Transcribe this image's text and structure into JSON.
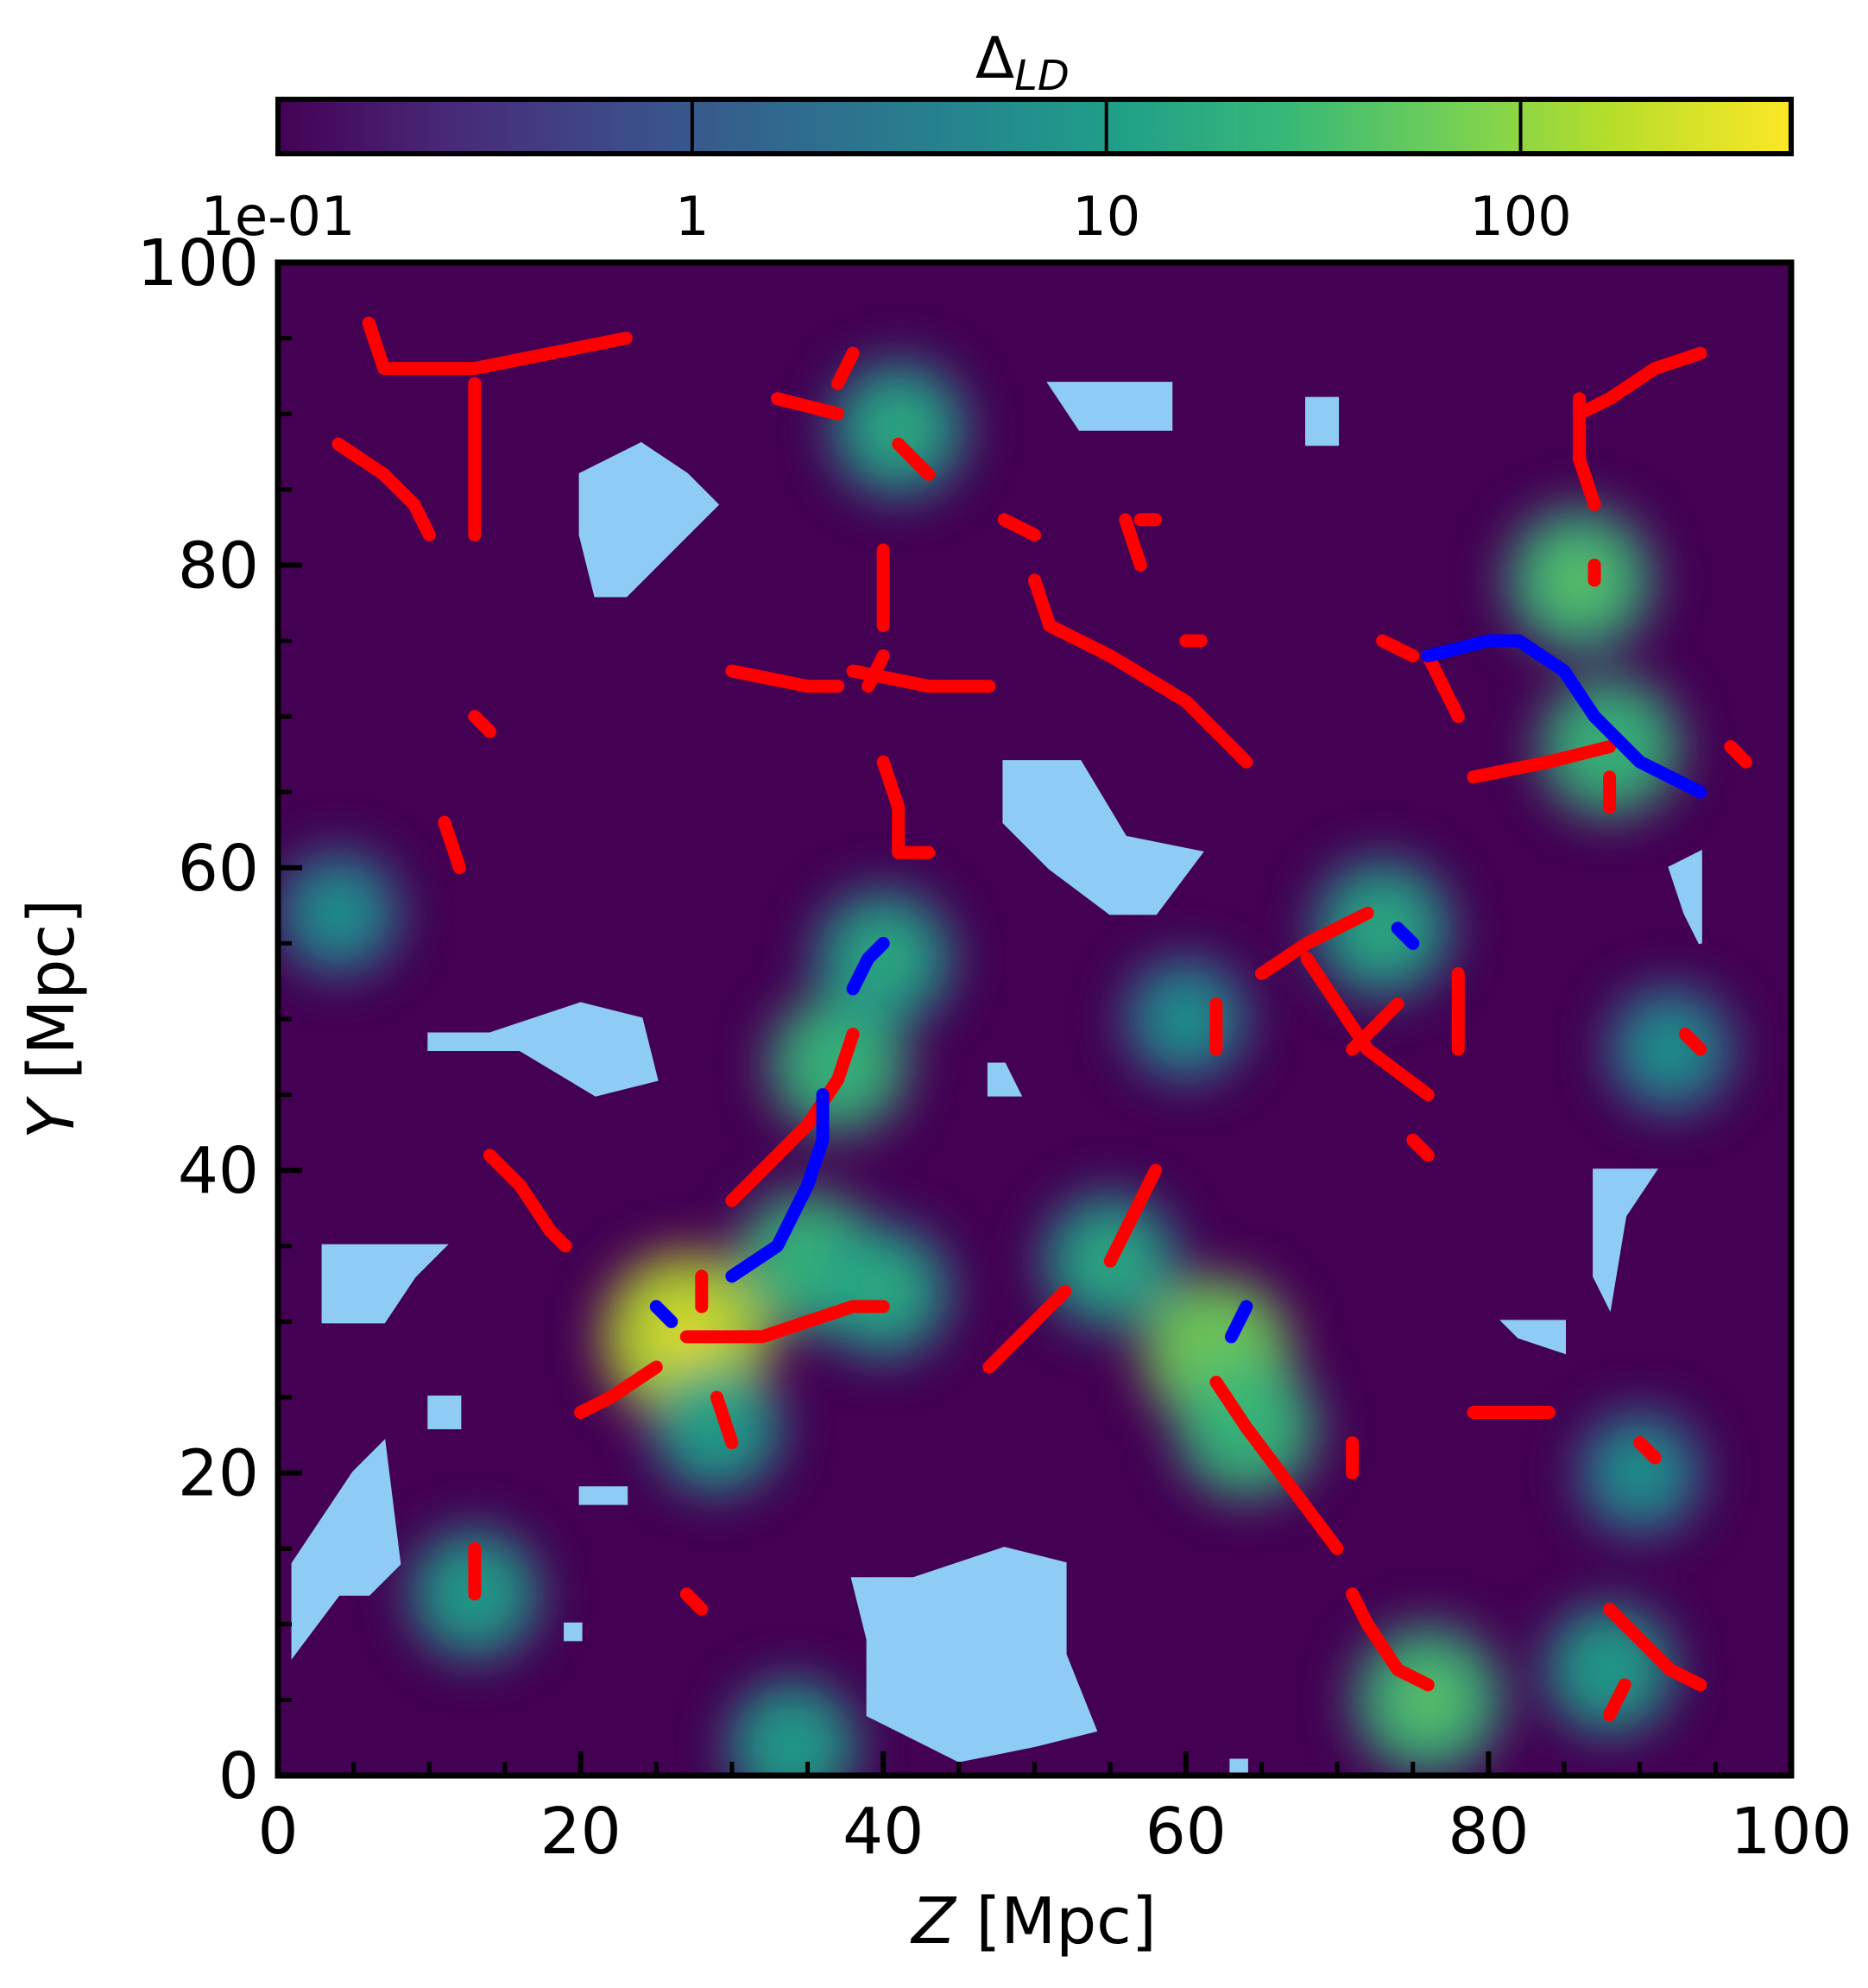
{
  "chart_data": {
    "type": "heatmap",
    "title": "",
    "xlabel": {
      "italic": "Z",
      "rest": " [Mpc]"
    },
    "ylabel": {
      "italic": "Y",
      "rest": " [Mpc]"
    },
    "xlim": [
      0,
      100
    ],
    "ylim": [
      0,
      100
    ],
    "xticks": [
      0,
      20,
      40,
      60,
      80,
      100
    ],
    "yticks": [
      0,
      20,
      40,
      60,
      80,
      100
    ],
    "grid": false,
    "colorbar": {
      "label": "Δ",
      "label_subscript": "LD",
      "location": "top",
      "scale": "log",
      "colormap": "viridis",
      "range": [
        0.1,
        450
      ],
      "ticks": [
        0.1,
        1,
        10,
        100
      ],
      "tick_labels": [
        "1e-01",
        "1",
        "10",
        "100"
      ]
    },
    "colors": {
      "background_density": "#440154",
      "void_mask": "#8ecbf5",
      "series_red": "#ff0000",
      "series_blue": "#0000ff"
    },
    "density_peaks": [
      {
        "x": 27,
        "y": 29,
        "value": 450
      },
      {
        "x": 35,
        "y": 34,
        "value": 40
      },
      {
        "x": 37,
        "y": 47,
        "value": 35
      },
      {
        "x": 40,
        "y": 54,
        "value": 30
      },
      {
        "x": 62,
        "y": 28,
        "value": 90
      },
      {
        "x": 64,
        "y": 23,
        "value": 40
      },
      {
        "x": 76,
        "y": 5,
        "value": 80
      },
      {
        "x": 86,
        "y": 79,
        "value": 60
      },
      {
        "x": 88,
        "y": 68,
        "value": 40
      },
      {
        "x": 73,
        "y": 56,
        "value": 30
      },
      {
        "x": 41,
        "y": 89,
        "value": 25
      },
      {
        "x": 55,
        "y": 34,
        "value": 25
      },
      {
        "x": 40,
        "y": 32,
        "value": 20
      },
      {
        "x": 13,
        "y": 12,
        "value": 15
      },
      {
        "x": 29,
        "y": 23,
        "value": 15
      },
      {
        "x": 34,
        "y": 2,
        "value": 15
      },
      {
        "x": 92,
        "y": 48,
        "value": 12
      },
      {
        "x": 90,
        "y": 20,
        "value": 10
      },
      {
        "x": 60,
        "y": 50,
        "value": 10
      },
      {
        "x": 4,
        "y": 57,
        "value": 10
      },
      {
        "x": 88,
        "y": 7,
        "value": 15
      }
    ],
    "voids": [
      {
        "points": [
          [
            20,
            86
          ],
          [
            24,
            88
          ],
          [
            27,
            86
          ],
          [
            29,
            84
          ],
          [
            27,
            82
          ],
          [
            23,
            78
          ],
          [
            21,
            78
          ],
          [
            20,
            82
          ]
        ]
      },
      {
        "points": [
          [
            51,
            92
          ],
          [
            59,
            92
          ],
          [
            59,
            89
          ],
          [
            53,
            89
          ]
        ]
      },
      {
        "points": [
          [
            48,
            67
          ],
          [
            53,
            67
          ],
          [
            56,
            62
          ],
          [
            61,
            61
          ],
          [
            58,
            57
          ],
          [
            55,
            57
          ],
          [
            51,
            60
          ],
          [
            48,
            63
          ]
        ]
      },
      {
        "points": [
          [
            10,
            49
          ],
          [
            14,
            49
          ],
          [
            20,
            51
          ],
          [
            24,
            50
          ],
          [
            25,
            46
          ],
          [
            21,
            45
          ],
          [
            16,
            48
          ],
          [
            10,
            48
          ]
        ]
      },
      {
        "points": [
          [
            3,
            35
          ],
          [
            11,
            35
          ],
          [
            9,
            33
          ],
          [
            7,
            30
          ],
          [
            3,
            30
          ]
        ]
      },
      {
        "points": [
          [
            38,
            13
          ],
          [
            42,
            13
          ],
          [
            48,
            15
          ],
          [
            52,
            14
          ],
          [
            52,
            8
          ],
          [
            54,
            3
          ],
          [
            50,
            2
          ],
          [
            45,
            1
          ],
          [
            39,
            4
          ],
          [
            39,
            9
          ]
        ]
      },
      {
        "points": [
          [
            5,
            20
          ],
          [
            7,
            22
          ],
          [
            8,
            14
          ],
          [
            6,
            12
          ],
          [
            4,
            12
          ],
          [
            1,
            8
          ],
          [
            1,
            14
          ]
        ]
      },
      {
        "points": [
          [
            87,
            40
          ],
          [
            91,
            40
          ],
          [
            89,
            37
          ],
          [
            88,
            31
          ],
          [
            87,
            33
          ]
        ]
      },
      {
        "points": [
          [
            81,
            30
          ],
          [
            85,
            30
          ],
          [
            85,
            28
          ],
          [
            82,
            29
          ]
        ]
      },
      {
        "points": [
          [
            92,
            60
          ],
          [
            94,
            61
          ],
          [
            94,
            55
          ],
          [
            93,
            57
          ]
        ]
      },
      {
        "points": [
          [
            68,
            91
          ],
          [
            70,
            91
          ],
          [
            70,
            88
          ],
          [
            68,
            88
          ]
        ]
      },
      {
        "points": [
          [
            10,
            25
          ],
          [
            12,
            25
          ],
          [
            12,
            23
          ],
          [
            10,
            23
          ]
        ]
      },
      {
        "points": [
          [
            47,
            47
          ],
          [
            48,
            47
          ],
          [
            49,
            45
          ],
          [
            47,
            45
          ]
        ]
      },
      {
        "points": [
          [
            63,
            1
          ],
          [
            64,
            1
          ],
          [
            64,
            0
          ],
          [
            63,
            0
          ]
        ]
      },
      {
        "points": [
          [
            20,
            19
          ],
          [
            23,
            19
          ],
          [
            23,
            18
          ],
          [
            20,
            18
          ]
        ]
      },
      {
        "points": [
          [
            19,
            10
          ],
          [
            20,
            10
          ],
          [
            20,
            9
          ],
          [
            19,
            9
          ]
        ]
      }
    ],
    "series": [
      {
        "color": "red",
        "segments": [
          [
            [
              6,
              96
            ],
            [
              7,
              93
            ],
            [
              13,
              93
            ],
            [
              18,
              94
            ],
            [
              23,
              95
            ]
          ],
          [
            [
              13,
              92
            ],
            [
              13,
              87
            ],
            [
              13,
              82
            ]
          ],
          [
            [
              4,
              88
            ],
            [
              7,
              86
            ],
            [
              9,
              84
            ],
            [
              10,
              82
            ]
          ],
          [
            [
              33,
              91
            ],
            [
              37,
              90
            ]
          ],
          [
            [
              37,
              92
            ],
            [
              38,
              94
            ]
          ],
          [
            [
              41,
              88
            ],
            [
              43,
              86
            ]
          ],
          [
            [
              40,
              81
            ],
            [
              40,
              76
            ]
          ],
          [
            [
              48,
              83
            ],
            [
              50,
              82
            ]
          ],
          [
            [
              56,
              83
            ],
            [
              57,
              80
            ]
          ],
          [
            [
              57,
              83
            ],
            [
              58,
              83
            ]
          ],
          [
            [
              50,
              79
            ],
            [
              51,
              76
            ],
            [
              55,
              74
            ],
            [
              60,
              71
            ],
            [
              64,
              67
            ]
          ],
          [
            [
              60,
              75
            ],
            [
              61,
              75
            ]
          ],
          [
            [
              30,
              73
            ],
            [
              35,
              72
            ],
            [
              37,
              72
            ]
          ],
          [
            [
              38,
              73
            ],
            [
              43,
              72
            ],
            [
              47,
              72
            ]
          ],
          [
            [
              40,
              74
            ],
            [
              39,
              72
            ]
          ],
          [
            [
              40,
              67
            ],
            [
              41,
              64
            ],
            [
              41,
              61
            ],
            [
              43,
              61
            ]
          ],
          [
            [
              13,
              70
            ],
            [
              14,
              69
            ]
          ],
          [
            [
              11,
              63
            ],
            [
              12,
              60
            ]
          ],
          [
            [
              38,
              49
            ],
            [
              37,
              46
            ],
            [
              35,
              43
            ],
            [
              30,
              38
            ]
          ],
          [
            [
              28,
              33
            ],
            [
              28,
              31
            ]
          ],
          [
            [
              14,
              41
            ],
            [
              16,
              39
            ],
            [
              18,
              36
            ]
          ],
          [
            [
              19,
              35
            ],
            [
              18,
              36
            ]
          ],
          [
            [
              27,
              29
            ],
            [
              30,
              29
            ],
            [
              32,
              29
            ],
            [
              35,
              30
            ],
            [
              38,
              31
            ],
            [
              40,
              31
            ]
          ],
          [
            [
              20,
              24
            ],
            [
              22,
              25
            ],
            [
              25,
              27
            ]
          ],
          [
            [
              29,
              25
            ],
            [
              30,
              22
            ]
          ],
          [
            [
              13,
              15
            ],
            [
              13,
              12
            ]
          ],
          [
            [
              27,
              12
            ],
            [
              28,
              11
            ]
          ],
          [
            [
              47,
              27
            ],
            [
              50,
              30
            ],
            [
              52,
              32
            ]
          ],
          [
            [
              55,
              34
            ],
            [
              57,
              38
            ],
            [
              58,
              40
            ]
          ],
          [
            [
              62,
              26
            ],
            [
              64,
              23
            ],
            [
              67,
              19
            ],
            [
              70,
              15
            ]
          ],
          [
            [
              71,
              12
            ],
            [
              72,
              10
            ],
            [
              74,
              7
            ],
            [
              76,
              6
            ]
          ],
          [
            [
              71,
              22
            ],
            [
              71,
              20
            ]
          ],
          [
            [
              65,
              53
            ],
            [
              68,
              55
            ],
            [
              72,
              57
            ]
          ],
          [
            [
              68,
              54
            ],
            [
              70,
              51
            ],
            [
              72,
              48
            ],
            [
              76,
              45
            ]
          ],
          [
            [
              71,
              48
            ],
            [
              74,
              51
            ]
          ],
          [
            [
              78,
              53
            ],
            [
              78,
              48
            ]
          ],
          [
            [
              62,
              51
            ],
            [
              62,
              48
            ]
          ],
          [
            [
              75,
              42
            ],
            [
              76,
              41
            ]
          ],
          [
            [
              79,
              24
            ],
            [
              84,
              24
            ]
          ],
          [
            [
              90,
              22
            ],
            [
              91,
              21
            ]
          ],
          [
            [
              88,
              11
            ],
            [
              90,
              9
            ],
            [
              92,
              7
            ],
            [
              94,
              6
            ]
          ],
          [
            [
              89,
              6
            ],
            [
              88,
              4
            ]
          ],
          [
            [
              79,
              66
            ],
            [
              84,
              67
            ],
            [
              88,
              68
            ]
          ],
          [
            [
              88,
              66
            ],
            [
              88,
              64
            ]
          ],
          [
            [
              96,
              68
            ],
            [
              97,
              67
            ]
          ],
          [
            [
              76,
              74
            ],
            [
              77,
              72
            ],
            [
              78,
              70
            ]
          ],
          [
            [
              73,
              75
            ],
            [
              75,
              74
            ]
          ],
          [
            [
              86,
              90
            ],
            [
              88,
              91
            ],
            [
              91,
              93
            ],
            [
              94,
              94
            ]
          ],
          [
            [
              86,
              91
            ],
            [
              86,
              87
            ],
            [
              87,
              84
            ]
          ],
          [
            [
              87,
              80
            ],
            [
              87,
              79
            ]
          ],
          [
            [
              93,
              49
            ],
            [
              94,
              48
            ]
          ]
        ]
      },
      {
        "color": "blue",
        "segments": [
          [
            [
              38,
              52
            ],
            [
              39,
              54
            ],
            [
              40,
              55
            ]
          ],
          [
            [
              30,
              33
            ],
            [
              33,
              35
            ],
            [
              35,
              39
            ],
            [
              36,
              42
            ],
            [
              36,
              45
            ]
          ],
          [
            [
              25,
              31
            ],
            [
              26,
              30
            ]
          ],
          [
            [
              63,
              29
            ],
            [
              64,
              31
            ]
          ],
          [
            [
              74,
              56
            ],
            [
              75,
              55
            ]
          ],
          [
            [
              76,
              74
            ],
            [
              80,
              75
            ],
            [
              82,
              75
            ],
            [
              85,
              73
            ],
            [
              87,
              70
            ],
            [
              90,
              67
            ],
            [
              94,
              65
            ]
          ]
        ]
      }
    ]
  }
}
